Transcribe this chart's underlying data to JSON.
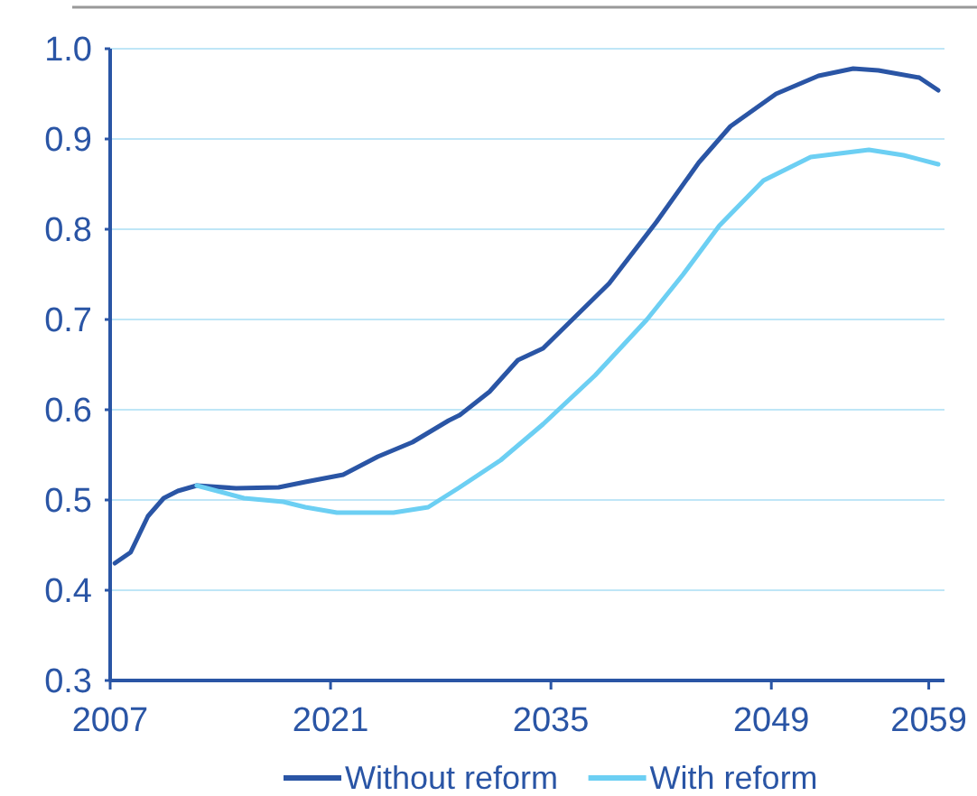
{
  "chart_data": {
    "type": "line",
    "xlim": [
      2007,
      2060
    ],
    "xticks": [
      2007,
      2021,
      2035,
      2049,
      2059
    ],
    "ylim": [
      0.3,
      1.0
    ],
    "yticks": [
      {
        "value": 0.3,
        "label": "0.3"
      },
      {
        "value": 0.4,
        "label": "0.4"
      },
      {
        "value": 0.5,
        "label": "0.5"
      },
      {
        "value": 0.6,
        "label": "0.6"
      },
      {
        "value": 0.7,
        "label": "0.7"
      },
      {
        "value": 0.8,
        "label": "0.8"
      },
      {
        "value": 0.9,
        "label": "0.9"
      },
      {
        "value": 1.0,
        "label": "1.0"
      }
    ],
    "grid": "y",
    "legend": "bottom",
    "line_style": "solid",
    "marker": "none",
    "series": [
      {
        "name": "Without reform",
        "color": "#2a55a5",
        "x": [
          2007.3,
          2008.3,
          2009.4,
          2010.4,
          2011.3,
          2012.5,
          2015,
          2017.7,
          2019.4,
          2021.8,
          2024,
          2026.2,
          2028.5,
          2029.2,
          2031.1,
          2032.9,
          2034.5,
          2038.7,
          2041.7,
          2044.4,
          2046.4,
          2049.3,
          2052,
          2054.2,
          2055.8,
          2058.4,
          2059.6
        ],
        "values": [
          0.43,
          0.442,
          0.482,
          0.502,
          0.51,
          0.516,
          0.513,
          0.514,
          0.52,
          0.528,
          0.548,
          0.564,
          0.588,
          0.594,
          0.62,
          0.655,
          0.668,
          0.74,
          0.808,
          0.874,
          0.914,
          0.95,
          0.97,
          0.978,
          0.976,
          0.968,
          0.954
        ]
      },
      {
        "name": "With reform",
        "color": "#6ccff3",
        "x": [
          2012.5,
          2015.5,
          2018,
          2019.4,
          2021.4,
          2025,
          2027.2,
          2029.2,
          2031.8,
          2034.5,
          2037.8,
          2041.1,
          2043.4,
          2045.7,
          2048.5,
          2051.5,
          2055.2,
          2057.4,
          2059.6
        ],
        "values": [
          0.516,
          0.502,
          0.498,
          0.492,
          0.486,
          0.486,
          0.492,
          0.514,
          0.544,
          0.584,
          0.638,
          0.7,
          0.75,
          0.804,
          0.854,
          0.88,
          0.888,
          0.882,
          0.872
        ]
      }
    ]
  }
}
